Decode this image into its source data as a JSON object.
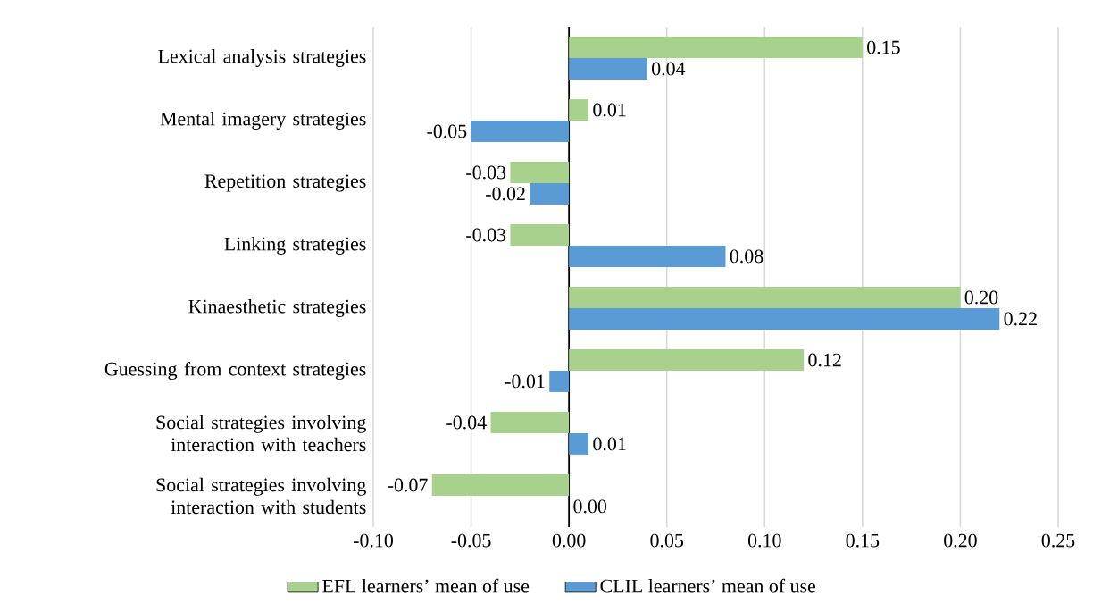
{
  "chart_data": {
    "type": "bar",
    "orientation": "horizontal",
    "categories": [
      "Lexical analysis strategies",
      "Mental imagery strategies",
      "Repetition strategies",
      "Linking strategies",
      "Kinaesthetic strategies",
      "Guessing from context strategies",
      "Social strategies involving interaction with teachers",
      "Social strategies involving interaction with students"
    ],
    "series": [
      {
        "name": "EFL learners’ mean of use",
        "color": "#a9d18e",
        "values": [
          0.15,
          0.01,
          -0.03,
          -0.03,
          0.2,
          0.12,
          -0.04,
          -0.07
        ],
        "value_labels": [
          "0.15",
          "0.01",
          "-0.03",
          "-0.03",
          "0.20",
          "0.12",
          "-0.04",
          "-0.07"
        ]
      },
      {
        "name": "CLIL learners’ mean of use",
        "color": "#5b9bd5",
        "values": [
          0.04,
          -0.05,
          -0.02,
          0.08,
          0.22,
          -0.01,
          0.01,
          0.0
        ],
        "value_labels": [
          "0.04",
          "-0.05",
          "-0.02",
          "0.08",
          "0.22",
          "-0.01",
          "0.01",
          "0.00"
        ]
      }
    ],
    "xlim": [
      -0.1,
      0.25
    ],
    "xticks": [
      {
        "value": -0.1,
        "label": "-0.10"
      },
      {
        "value": -0.05,
        "label": "-0.05"
      },
      {
        "value": 0,
        "label": "0.00"
      },
      {
        "value": 0.05,
        "label": "0.05"
      },
      {
        "value": 0.1,
        "label": "0.10"
      },
      {
        "value": 0.15,
        "label": "0.15"
      },
      {
        "value": 0.2,
        "label": "0.20"
      },
      {
        "value": 0.25,
        "label": "0.25"
      }
    ],
    "grid": "x",
    "legend": "bottom"
  }
}
